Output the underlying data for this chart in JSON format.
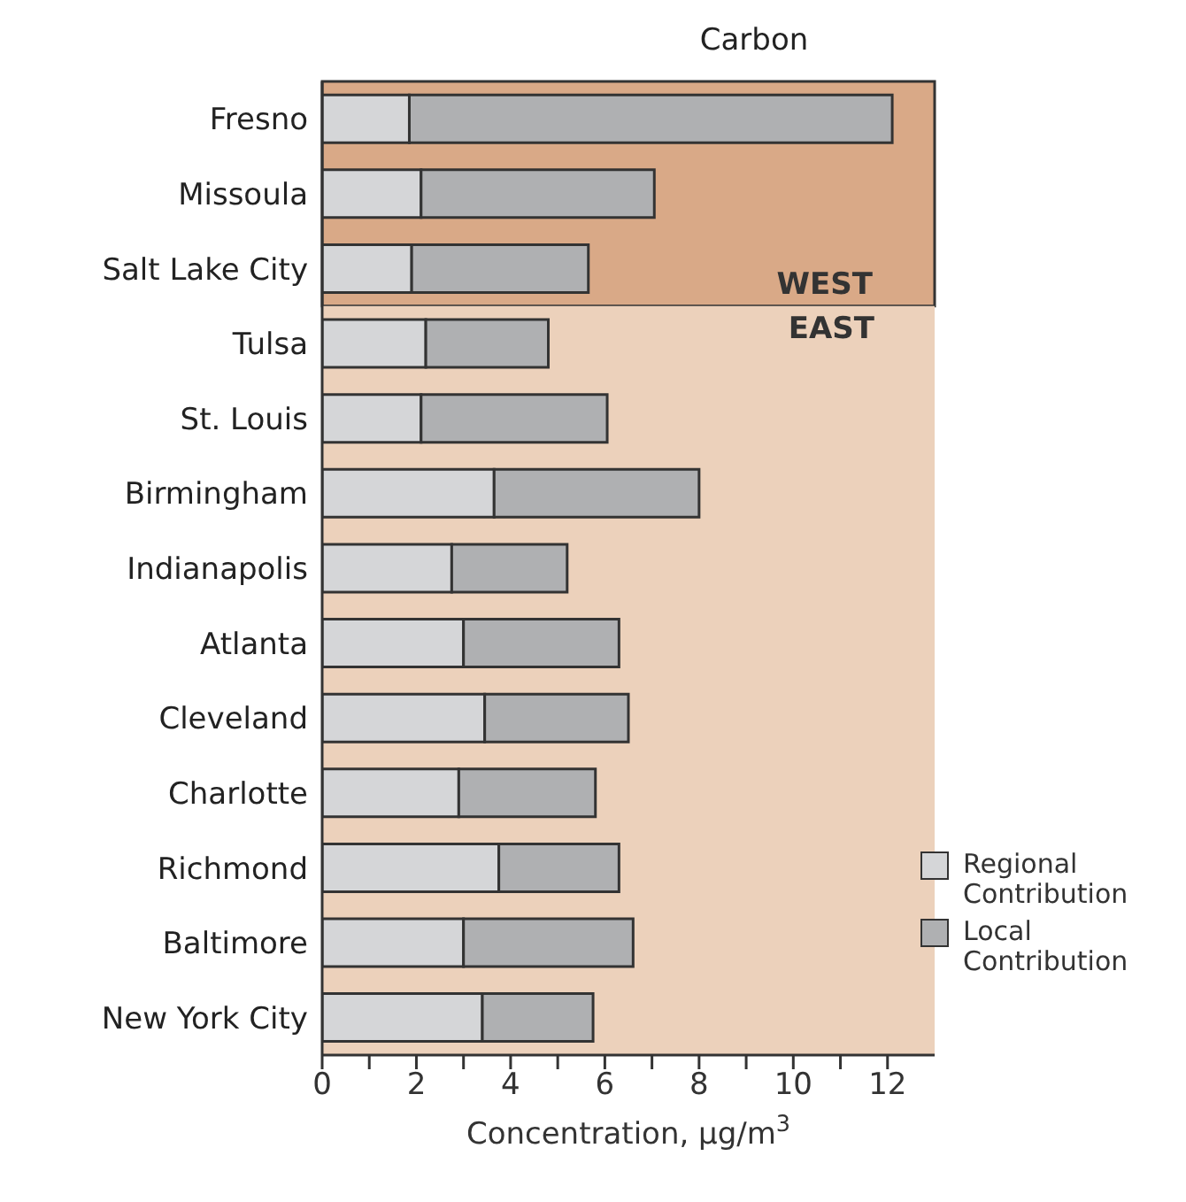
{
  "chart_data": {
    "type": "bar",
    "title": "Carbon",
    "xlabel": "Concentration, μg/m$^{3}$",
    "orientation": "horizontal",
    "stacked": true,
    "categories": [
      "Fresno",
      "Missoula",
      "Salt Lake City",
      "Tulsa",
      "St. Louis",
      "Birmingham",
      "Indianapolis",
      "Atlanta",
      "Cleveland",
      "Charlotte",
      "Richmond",
      "Baltimore",
      "New York City"
    ],
    "series": [
      {
        "name": "Regional Contribution",
        "color": "#d5d6d8",
        "values": [
          1.85,
          2.1,
          1.9,
          2.2,
          2.1,
          3.65,
          2.75,
          3.0,
          3.45,
          2.9,
          3.75,
          3.0,
          3.4
        ]
      },
      {
        "name": "Local Contribution",
        "color": "#afb0b2",
        "values": [
          10.25,
          4.95,
          3.75,
          2.6,
          3.95,
          4.35,
          2.45,
          3.3,
          3.05,
          2.9,
          2.55,
          3.6,
          2.35
        ]
      }
    ],
    "xlim": [
      0,
      13
    ],
    "xticks": [
      0,
      {
        "value": 1,
        "label": null
      },
      2,
      {
        "value": 3,
        "label": null
      },
      4,
      {
        "value": 5,
        "label": null
      },
      6,
      {
        "value": 7,
        "label": null
      },
      8,
      {
        "value": 9,
        "label": null
      },
      10,
      {
        "value": 11,
        "label": null
      },
      12
    ],
    "bands": [
      {
        "axis": "y",
        "from": "Fresno",
        "to": "Salt Lake City",
        "label": "WEST",
        "color": "#d9a987"
      },
      {
        "axis": "y",
        "from": "Tulsa",
        "to": "New York City",
        "label": "EAST",
        "color": "#ecd1bb"
      }
    ],
    "grid": false,
    "legend": "bottom right"
  }
}
